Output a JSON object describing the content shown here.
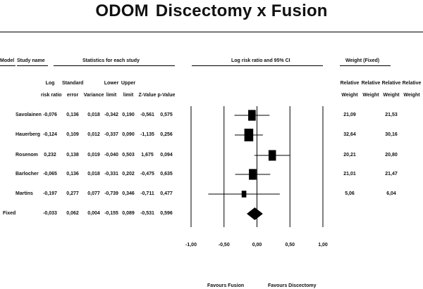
{
  "title_main": "ODOM",
  "title_rest": "Discectomy x Fusion",
  "header": {
    "model": "Model",
    "study_name": "Study name",
    "statistics": "Statistics for each study",
    "plot": "Log risk ratio and 95% CI",
    "weight": "Weight (Fixed)"
  },
  "columns": {
    "log_rr": [
      "Log",
      "risk ratio"
    ],
    "se": [
      "Standard",
      "error"
    ],
    "variance": [
      "",
      "Variance"
    ],
    "lower": [
      "Lower",
      "limit"
    ],
    "upper": [
      "Upper",
      "limit"
    ],
    "z": [
      "",
      "Z-Value"
    ],
    "p": [
      "",
      "p-Value"
    ],
    "w1": [
      "Relative",
      "Weight"
    ],
    "w2": [
      "Relative",
      "Weight"
    ],
    "w3": [
      "Relative",
      "Weight"
    ],
    "w4": [
      "Relative",
      "Weight"
    ]
  },
  "rows": [
    {
      "model": "",
      "study": "Savolainen",
      "log_rr": "-0,076",
      "se": "0,136",
      "var": "0,018",
      "lower": "-0,342",
      "upper": "0,190",
      "z": "-0,561",
      "p": "0,575",
      "w1": "21,09",
      "w2": "21,53"
    },
    {
      "model": "",
      "study": "Hauerberg",
      "log_rr": "-0,124",
      "se": "0,109",
      "var": "0,012",
      "lower": "-0,337",
      "upper": "0,090",
      "z": "-1,135",
      "p": "0,256",
      "w1": "32,64",
      "w2": "30,16"
    },
    {
      "model": "",
      "study": "Rosenom",
      "log_rr": "0,232",
      "se": "0,138",
      "var": "0,019",
      "lower": "-0,040",
      "upper": "0,503",
      "z": "1,675",
      "p": "0,094",
      "w1": "20,21",
      "w2": "20,80"
    },
    {
      "model": "",
      "study": "Barlocher",
      "log_rr": "-0,065",
      "se": "0,136",
      "var": "0,018",
      "lower": "-0,331",
      "upper": "0,202",
      "z": "-0,475",
      "p": "0,635",
      "w1": "21,01",
      "w2": "21,47"
    },
    {
      "model": "",
      "study": "Martins",
      "log_rr": "-0,197",
      "se": "0,277",
      "var": "0,077",
      "lower": "-0,739",
      "upper": "0,346",
      "z": "-0,711",
      "p": "0,477",
      "w1": "5,06",
      "w2": "6,04"
    },
    {
      "model": "Fixed",
      "study": "",
      "log_rr": "-0,033",
      "se": "0,062",
      "var": "0,004",
      "lower": "-0,155",
      "upper": "0,089",
      "z": "-0,531",
      "p": "0,596",
      "w1": "",
      "w2": ""
    }
  ],
  "chart_data": {
    "type": "forest",
    "xlim": [
      -1.0,
      1.0
    ],
    "ticks": [
      -1.0,
      -0.5,
      0.0,
      0.5,
      1.0
    ],
    "tick_labels": [
      "-1,00",
      "-0,50",
      "0,00",
      "0,50",
      "1,00"
    ],
    "xlabel_left": "Favours Fusion",
    "xlabel_right": "Favours Discectomy",
    "studies": [
      {
        "name": "Savolainen",
        "estimate": -0.076,
        "lower": -0.342,
        "upper": 0.19,
        "weight": 21.09
      },
      {
        "name": "Hauerberg",
        "estimate": -0.124,
        "lower": -0.337,
        "upper": 0.09,
        "weight": 32.64
      },
      {
        "name": "Rosenom",
        "estimate": 0.232,
        "lower": -0.04,
        "upper": 0.503,
        "weight": 20.21
      },
      {
        "name": "Barlocher",
        "estimate": -0.065,
        "lower": -0.331,
        "upper": 0.202,
        "weight": 21.01
      },
      {
        "name": "Martins",
        "estimate": -0.197,
        "lower": -0.739,
        "upper": 0.346,
        "weight": 5.06
      }
    ],
    "summary": {
      "name": "Fixed",
      "estimate": -0.033,
      "lower": -0.155,
      "upper": 0.089
    }
  }
}
